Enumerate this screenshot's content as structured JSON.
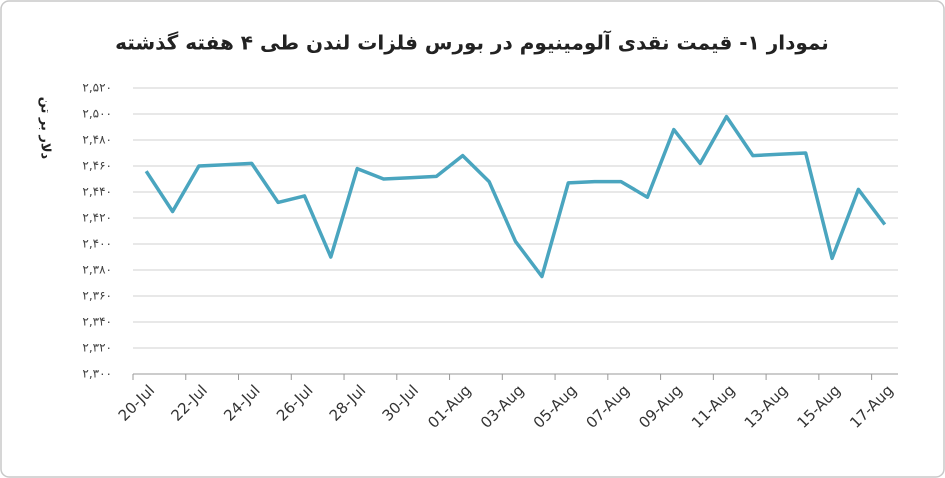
{
  "chart_data": {
    "type": "line",
    "title": "نمودار ۱- قیمت نقدی آلومینیوم در بورس فلزات لندن طی ۴ هفته گذشته",
    "y_label": "دلار بر تن",
    "categories": [
      "20-Jul",
      null,
      "22-Jul",
      null,
      "24-Jul",
      null,
      "26-Jul",
      null,
      "28-Jul",
      null,
      "30-Jul",
      null,
      "01-Aug",
      null,
      "03-Aug",
      null,
      "05-Aug",
      null,
      "07-Aug",
      null,
      "09-Aug",
      null,
      "11-Aug",
      null,
      "13-Aug",
      null,
      "15-Aug",
      null,
      "17-Aug"
    ],
    "values": [
      2456,
      2425,
      2460,
      2461,
      2462,
      2432,
      2437,
      2390,
      2458,
      2450,
      2451,
      2452,
      2468,
      2448,
      2402,
      2375,
      2447,
      2448,
      2448,
      2436,
      2488,
      2462,
      2498,
      2468,
      2469,
      2470,
      2389,
      2442,
      2415
    ],
    "color": "#4aa5bf",
    "ylim": [
      2300,
      2520
    ],
    "yticks": [
      {
        "value": 2300,
        "label": "۲,۳۰۰"
      },
      {
        "value": 2320,
        "label": "۲,۳۲۰"
      },
      {
        "value": 2340,
        "label": "۲,۳۴۰"
      },
      {
        "value": 2360,
        "label": "۲,۳۶۰"
      },
      {
        "value": 2380,
        "label": "۲,۳۸۰"
      },
      {
        "value": 2400,
        "label": "۲,۴۰۰"
      },
      {
        "value": 2420,
        "label": "۲,۴۲۰"
      },
      {
        "value": 2440,
        "label": "۲,۴۴۰"
      },
      {
        "value": 2460,
        "label": "۲,۴۶۰"
      },
      {
        "value": 2480,
        "label": "۲,۴۸۰"
      },
      {
        "value": 2500,
        "label": "۲,۵۰۰"
      },
      {
        "value": 2520,
        "label": "۲,۵۲۰"
      }
    ],
    "grid": true
  }
}
